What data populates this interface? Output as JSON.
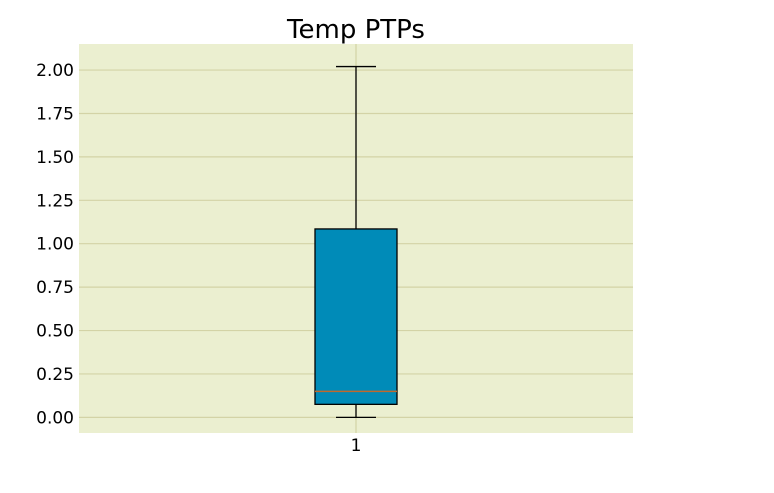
{
  "colors": {
    "figure_background": "#ffffff",
    "plot_background": "#ebefd0",
    "gridline": "#d3d3a6",
    "box_fill": "#008bb8",
    "box_edge": "#000000",
    "median": "#c0692d",
    "whisker": "#000000"
  },
  "chart_data": {
    "type": "boxplot",
    "title": "Temp PTPs",
    "xlabel": "",
    "ylabel": "",
    "categories": [
      "1"
    ],
    "ylim": [
      -0.09,
      2.15
    ],
    "yticks": [
      0.0,
      0.25,
      0.5,
      0.75,
      1.0,
      1.25,
      1.5,
      1.75,
      2.0
    ],
    "ytick_labels": [
      "0.00",
      "0.25",
      "0.50",
      "0.75",
      "1.00",
      "1.25",
      "1.50",
      "1.75",
      "2.00"
    ],
    "grid": "y",
    "boxes": [
      {
        "category": "1",
        "whisker_low": 0.0,
        "q1": 0.075,
        "median": 0.15,
        "q3": 1.085,
        "whisker_high": 2.02
      }
    ]
  }
}
